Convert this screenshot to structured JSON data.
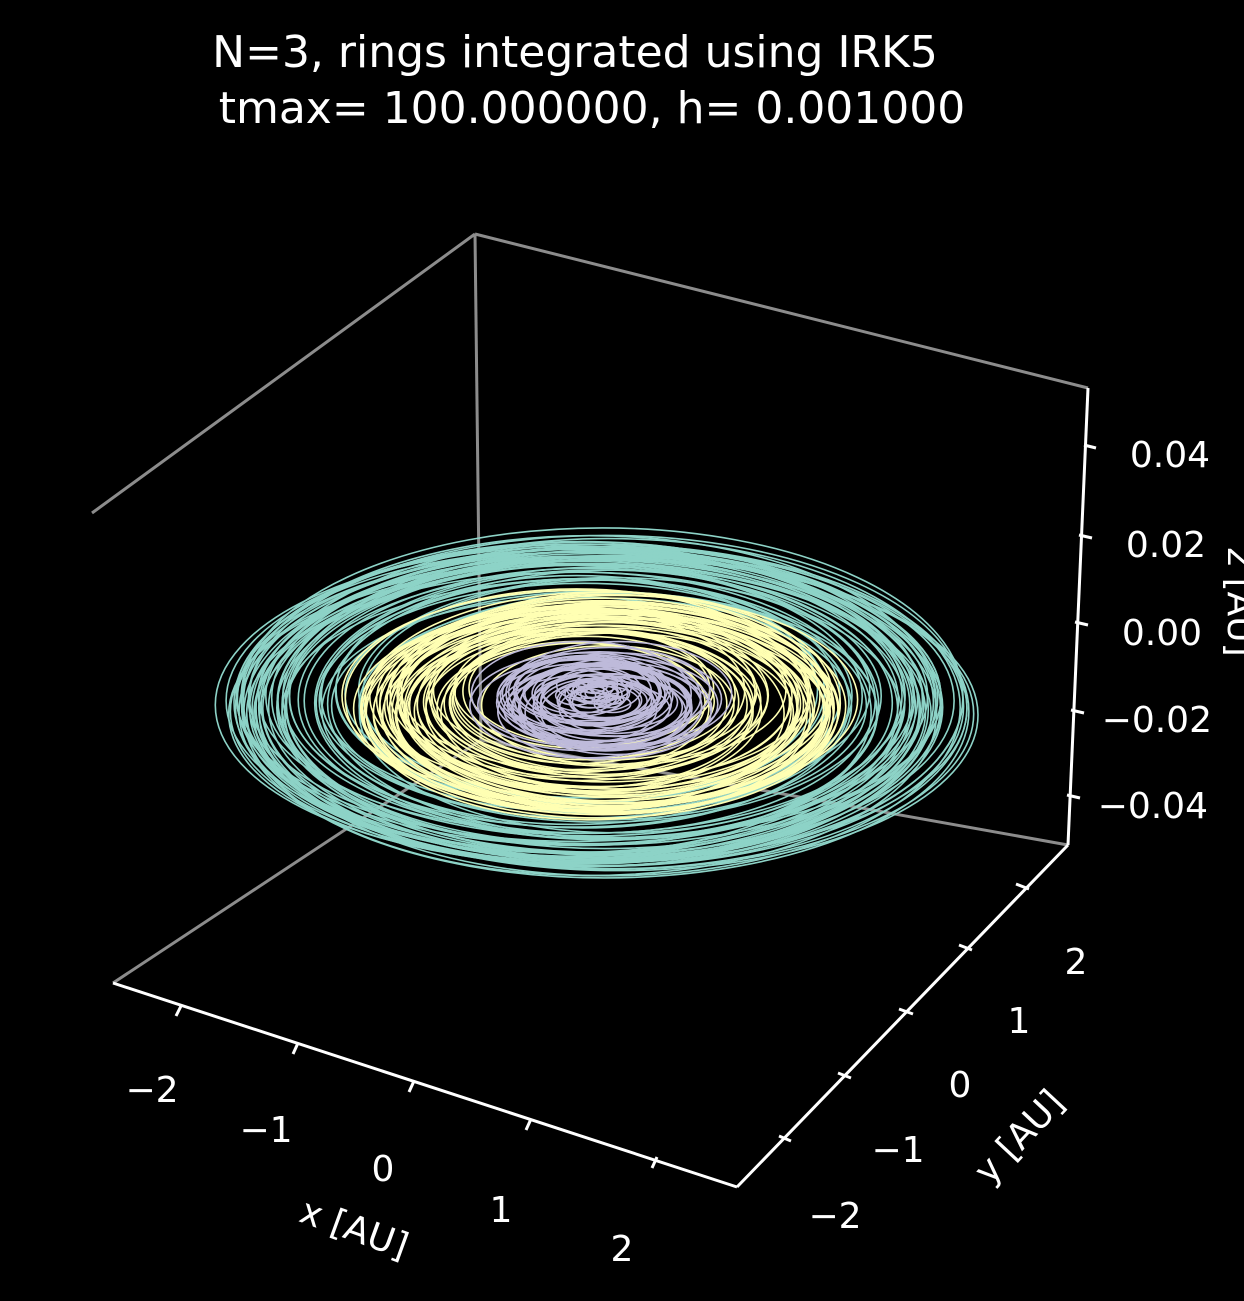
{
  "chart_data": {
    "type": "line",
    "projection": "3d",
    "title_line1": "N=3, rings integrated using IRK5",
    "title_line2": "tmax= 100.000000, h= 0.001000",
    "xlabel": "x [AU]",
    "ylabel": "y [AU]",
    "zlabel": "z [AU]",
    "xlim": [
      -2.7,
      2.7
    ],
    "ylim": [
      -2.7,
      2.7
    ],
    "zlim": [
      -0.05,
      0.05
    ],
    "x_ticks": [
      "−2",
      "−1",
      "0",
      "1",
      "2"
    ],
    "y_ticks": [
      "−2",
      "−1",
      "0",
      "1",
      "2"
    ],
    "z_ticks": [
      "−0.04",
      "−0.02",
      "0.00",
      "0.02",
      "0.04"
    ],
    "grid": false,
    "background": "#000000",
    "series": [
      {
        "color": "#8dd3c7",
        "radius_range": [
          1.7,
          2.65
        ],
        "ring_count": 60,
        "z": 0.0
      },
      {
        "color": "#ffffb3",
        "radius_range": [
          0.9,
          1.75
        ],
        "ring_count": 60,
        "z": 0.0
      },
      {
        "color": "#bebada",
        "radius_range": [
          0.05,
          0.85
        ],
        "ring_count": 60,
        "z": 0.0
      }
    ]
  }
}
